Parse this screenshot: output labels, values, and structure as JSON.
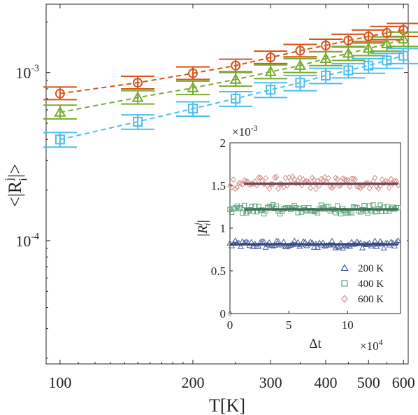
{
  "chart_data": [
    {
      "type": "scatter",
      "xlabel": "T[K]",
      "ylabel": "<|R_i^j|>",
      "x_scale": "log",
      "y_scale": "log",
      "xlim": [
        93,
        615
      ],
      "ylim": [
        1.85e-05,
        0.00255
      ],
      "xticks": [
        {
          "value": 100,
          "label": "100"
        },
        {
          "value": 200,
          "label": "200"
        },
        {
          "value": 300,
          "label": "300"
        },
        {
          "value": 400,
          "label": "400"
        },
        {
          "value": 500,
          "label": "500"
        },
        {
          "value": 600,
          "label": "600"
        }
      ],
      "yticks": [
        {
          "value": 0.001,
          "base": "10",
          "exp": "-3"
        },
        {
          "value": 0.0001,
          "base": "10",
          "exp": "-4"
        }
      ],
      "x": [
        100,
        150,
        200,
        250,
        300,
        350,
        400,
        450,
        500,
        550,
        600
      ],
      "series": [
        {
          "marker": "circle",
          "color": "#D95319",
          "y": [
            0.00075,
            0.00087,
            0.00099,
            0.0011,
            0.00123,
            0.00135,
            0.00145,
            0.00155,
            0.00164,
            0.00172,
            0.00179
          ],
          "err_low": [
            0.00069,
            0.0008,
            0.00091,
            0.00101,
            0.00113,
            0.00124,
            0.00133,
            0.00142,
            0.0015,
            0.00157,
            0.00164
          ],
          "err_high": [
            0.00082,
            0.00095,
            0.00108,
            0.0012,
            0.00134,
            0.00147,
            0.00158,
            0.00169,
            0.00179,
            0.00188,
            0.00196
          ]
        },
        {
          "marker": "triangle",
          "color": "#77AC30",
          "y": [
            0.00058,
            0.00071,
            0.00081,
            0.00091,
            0.00101,
            0.0011,
            0.00121,
            0.0013,
            0.00139,
            0.00148,
            0.00158
          ],
          "err_low": [
            0.00053,
            0.00065,
            0.00074,
            0.00083,
            0.00092,
            0.001,
            0.0011,
            0.00118,
            0.00126,
            0.00134,
            0.00143
          ],
          "err_high": [
            0.00064,
            0.00078,
            0.00089,
            0.001,
            0.00111,
            0.00121,
            0.00133,
            0.00143,
            0.00153,
            0.00163,
            0.00174
          ]
        },
        {
          "marker": "square",
          "color": "#4DBEEE",
          "y": [
            0.0004,
            0.00051,
            0.00061,
            0.0007,
            0.00079,
            0.00087,
            0.00096,
            0.00103,
            0.0011,
            0.00118,
            0.00126
          ],
          "err_low": [
            0.00036,
            0.00046,
            0.00055,
            0.00063,
            0.00071,
            0.00078,
            0.00086,
            0.00093,
            0.00099,
            0.00106,
            0.00113
          ],
          "err_high": [
            0.00044,
            0.00056,
            0.00067,
            0.00077,
            0.00087,
            0.00096,
            0.00106,
            0.00113,
            0.00121,
            0.0013,
            0.00139
          ]
        }
      ]
    },
    {
      "type": "scatter",
      "xlabel": "Δt",
      "ylabel": "|R_i^j|",
      "xlim": [
        0,
        145000
      ],
      "ylim": [
        0,
        0.002
      ],
      "x_multiplier": "×10",
      "x_multiplier_exp": "4",
      "y_multiplier": "×10",
      "y_multiplier_exp": "-3",
      "xticks": [
        {
          "value": 0,
          "label": "0"
        },
        {
          "value": 50000,
          "label": "5"
        },
        {
          "value": 100000,
          "label": "10"
        }
      ],
      "yticks": [
        {
          "value": 0,
          "label": "0"
        },
        {
          "value": 0.0005,
          "label": "0.5"
        },
        {
          "value": 0.001,
          "label": "1"
        },
        {
          "value": 0.0015,
          "label": "1.5"
        },
        {
          "value": 0.002,
          "label": "2"
        }
      ],
      "legend_position": "bottom-right",
      "series": [
        {
          "name": "200 K",
          "marker": "triangle",
          "color": "#4A5EA0",
          "mean": 0.00081,
          "scatter": 2.8e-05,
          "x_range": [
            0,
            143000
          ],
          "fit_y": 0.00081,
          "fit_x": [
            0,
            143000
          ]
        },
        {
          "name": "400 K",
          "marker": "square",
          "color": "#5AA37A",
          "mean": 0.00122,
          "scatter": 3.3e-05,
          "x_range": [
            0,
            143000
          ],
          "fit_y": 0.00122,
          "fit_x": [
            12000,
            143000
          ]
        },
        {
          "name": "600 K",
          "marker": "diamond",
          "color": "#D98C8C",
          "mean": 0.00153,
          "scatter": 4.5e-05,
          "x_range": [
            0,
            143000
          ],
          "fit_y": 0.00152,
          "fit_x": [
            12000,
            143000
          ]
        }
      ],
      "fit_color": "#6E4A55",
      "fit_color_mid": "#3C6E50",
      "fit_color_low": "#3A4878"
    }
  ]
}
